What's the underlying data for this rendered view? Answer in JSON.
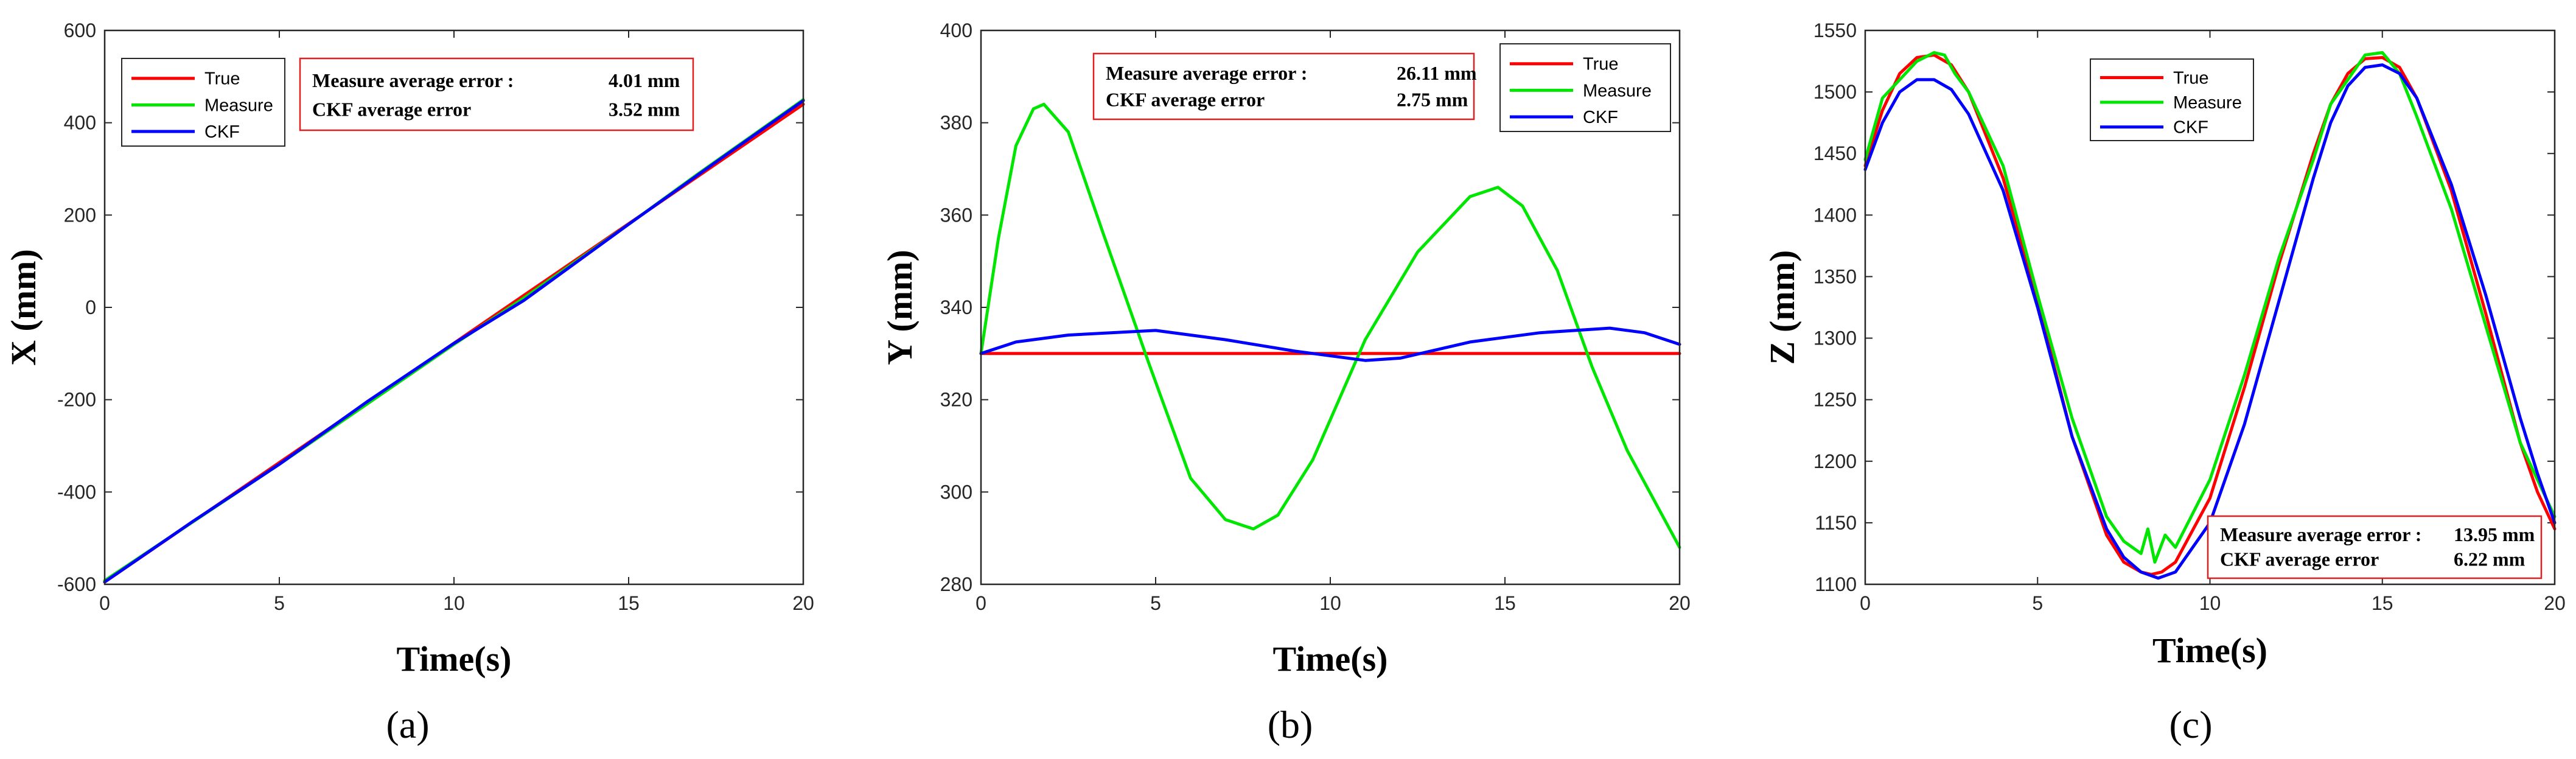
{
  "chart_data": [
    {
      "id": "a",
      "type": "line",
      "caption": "(a)",
      "xlabel": "Time(s)",
      "ylabel": "X (mm)",
      "xlim": [
        0,
        20
      ],
      "ylim": [
        -600,
        600
      ],
      "xticks": [
        0,
        5,
        10,
        15,
        20
      ],
      "yticks": [
        -600,
        -400,
        -200,
        0,
        200,
        400,
        600
      ],
      "legend": {
        "position": "top-left",
        "labels": [
          "True",
          "Measure",
          "CKF"
        ]
      },
      "annotation": {
        "line1_label": "Measure average error :",
        "line1_value": "4.01 mm",
        "line2_label": "CKF average error",
        "line2_value": "3.52 mm"
      },
      "series": [
        {
          "name": "True",
          "color": "#ff0000",
          "x": [
            0,
            20
          ],
          "y": [
            -595,
            440
          ]
        },
        {
          "name": "Measure",
          "color": "#00e600",
          "x": [
            0,
            5,
            10,
            12,
            15,
            17,
            20
          ],
          "y": [
            -592,
            -340,
            -80,
            20,
            180,
            290,
            450
          ]
        },
        {
          "name": "CKF",
          "color": "#0000ff",
          "x": [
            0,
            2.5,
            5,
            7.5,
            10,
            12,
            15,
            17.5,
            20
          ],
          "y": [
            -595,
            -465,
            -340,
            -205,
            -78,
            15,
            180,
            315,
            448
          ]
        }
      ]
    },
    {
      "id": "b",
      "type": "line",
      "caption": "(b)",
      "xlabel": "Time(s)",
      "ylabel": "Y (mm)",
      "xlim": [
        0,
        20
      ],
      "ylim": [
        280,
        400
      ],
      "xticks": [
        0,
        5,
        10,
        15,
        20
      ],
      "yticks": [
        280,
        300,
        320,
        340,
        360,
        380,
        400
      ],
      "legend": {
        "position": "top-right",
        "labels": [
          "True",
          "Measure",
          "CKF"
        ]
      },
      "annotation": {
        "line1_label": "Measure average error  :",
        "line1_value": "26.11 mm",
        "line2_label": "CKF average error",
        "line2_value": "2.75 mm"
      },
      "series": [
        {
          "name": "True",
          "color": "#ff0000",
          "x": [
            0,
            20
          ],
          "y": [
            330,
            330
          ]
        },
        {
          "name": "Measure",
          "color": "#00e600",
          "x": [
            0,
            0.5,
            1,
            1.5,
            1.8,
            2.5,
            3.5,
            4.8,
            6,
            7,
            7.8,
            8.5,
            9.5,
            11,
            12.5,
            14,
            14.8,
            15.5,
            16.5,
            17.5,
            18.5,
            20
          ],
          "y": [
            330,
            355,
            375,
            383,
            384,
            378,
            356,
            328,
            303,
            294,
            292,
            295,
            307,
            333,
            352,
            364,
            366,
            362,
            348,
            327,
            309,
            288
          ]
        },
        {
          "name": "CKF",
          "color": "#0000ff",
          "x": [
            0,
            1,
            2.5,
            5,
            7,
            9,
            11,
            12,
            14,
            16,
            18,
            19,
            20
          ],
          "y": [
            330,
            332.5,
            334,
            335,
            333,
            330.5,
            328.5,
            329,
            332.5,
            334.5,
            335.5,
            334.5,
            332
          ]
        }
      ]
    },
    {
      "id": "c",
      "type": "line",
      "caption": "(c)",
      "xlabel": "Time(s)",
      "ylabel": "Z (mm)",
      "xlim": [
        0,
        20
      ],
      "ylim": [
        1100,
        1550
      ],
      "xticks": [
        0,
        5,
        10,
        15,
        20
      ],
      "yticks": [
        1100,
        1150,
        1200,
        1250,
        1300,
        1350,
        1400,
        1450,
        1500,
        1550
      ],
      "legend": {
        "position": "top-left",
        "labels": [
          "True",
          "Measure",
          "CKF"
        ]
      },
      "annotation": {
        "line1_label": "Measure average error :",
        "line1_value": "13.95 mm",
        "line2_label": "CKF average error",
        "line2_value": "6.22 mm"
      },
      "series": [
        {
          "name": "True",
          "color": "#ff0000",
          "x": [
            0,
            0.5,
            1,
            1.5,
            2,
            2.5,
            3,
            4,
            5,
            6,
            7,
            7.5,
            8,
            8.3,
            8.6,
            9,
            10,
            11,
            12,
            13,
            13.5,
            14,
            14.5,
            15,
            15.5,
            16,
            17,
            18,
            19,
            19.5,
            20
          ],
          "y": [
            1440,
            1485,
            1515,
            1528,
            1530,
            1522,
            1500,
            1430,
            1330,
            1220,
            1140,
            1118,
            1110,
            1108,
            1110,
            1118,
            1170,
            1260,
            1360,
            1450,
            1490,
            1515,
            1527,
            1528,
            1520,
            1495,
            1420,
            1320,
            1215,
            1175,
            1145
          ]
        },
        {
          "name": "Measure",
          "color": "#00e600",
          "x": [
            0,
            0.5,
            1,
            1.5,
            2,
            2.3,
            2.6,
            3,
            4,
            5,
            6,
            7,
            7.5,
            8,
            8.2,
            8.4,
            8.7,
            9,
            10,
            11,
            12,
            13,
            13.5,
            14,
            14.5,
            15,
            15.5,
            16,
            17,
            18,
            19,
            19.5,
            20
          ],
          "y": [
            1445,
            1495,
            1510,
            1525,
            1532,
            1530,
            1515,
            1500,
            1440,
            1335,
            1235,
            1155,
            1135,
            1125,
            1145,
            1118,
            1140,
            1130,
            1185,
            1270,
            1365,
            1445,
            1490,
            1510,
            1530,
            1532,
            1515,
            1480,
            1405,
            1310,
            1215,
            1185,
            1155
          ]
        },
        {
          "name": "CKF",
          "color": "#0000ff",
          "x": [
            0,
            0.5,
            1,
            1.5,
            2,
            2.5,
            3,
            4,
            5,
            6,
            7,
            7.5,
            8,
            8.5,
            9,
            10,
            11,
            12,
            13,
            13.5,
            14,
            14.5,
            15,
            15.5,
            16,
            17,
            18,
            19,
            19.5,
            20
          ],
          "y": [
            1437,
            1475,
            1500,
            1510,
            1510,
            1502,
            1482,
            1420,
            1325,
            1220,
            1145,
            1122,
            1110,
            1105,
            1110,
            1150,
            1230,
            1330,
            1430,
            1475,
            1505,
            1520,
            1522,
            1515,
            1495,
            1425,
            1335,
            1235,
            1190,
            1150
          ]
        }
      ]
    }
  ]
}
